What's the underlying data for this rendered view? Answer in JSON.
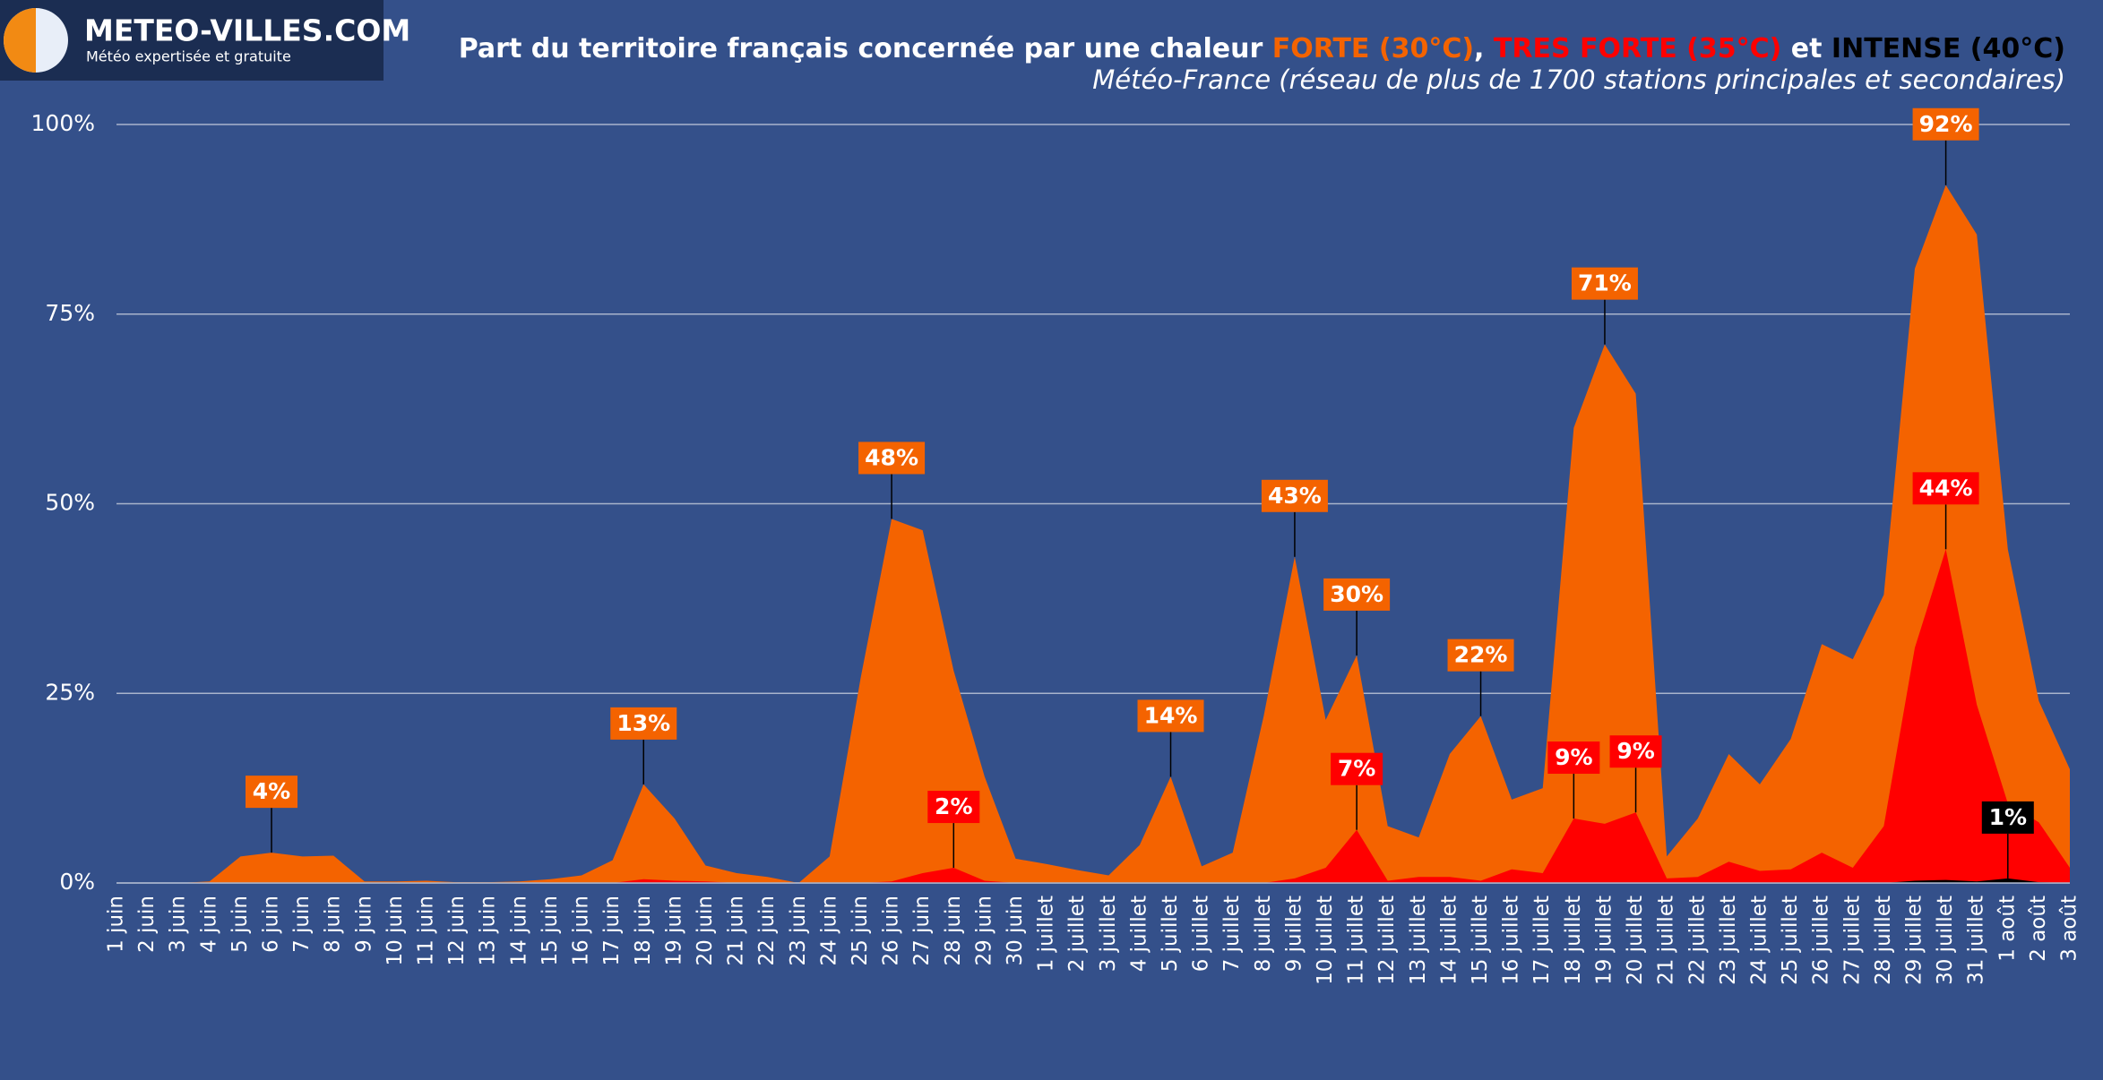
{
  "logo": {
    "title": "METEO-VILLES.COM",
    "tagline": "Météo expertisée et gratuite"
  },
  "chart_data": {
    "type": "area",
    "title": [
      "Part du territoire français concernée par une chaleur ",
      "FORTE (30°C)",
      ",  ",
      "TRES FORTE (35°C)",
      " et ",
      "INTENSE (40°C)"
    ],
    "title_colors": [
      "#ffffff",
      "#f46300",
      "#ffffff",
      "#ff0000",
      "#ffffff",
      "#000000"
    ],
    "subtitle": "Météo-France (réseau de plus de 1700 stations principales et secondaires)",
    "categories": [
      "1 juin",
      "2 juin",
      "3 juin",
      "4 juin",
      "5 juin",
      "6 juin",
      "7 juin",
      "8 juin",
      "9 juin",
      "10 juin",
      "11 juin",
      "12 juin",
      "13 juin",
      "14 juin",
      "15 juin",
      "16 juin",
      "17 juin",
      "18 juin",
      "19 juin",
      "20 juin",
      "21 juin",
      "22 juin",
      "23 juin",
      "24 juin",
      "25 juin",
      "26 juin",
      "27 juin",
      "28 juin",
      "29 juin",
      "30 juin",
      "1 juillet",
      "2 juillet",
      "3 juillet",
      "4 juillet",
      "5 juillet",
      "6 juillet",
      "7 juillet",
      "8 juillet",
      "9 juillet",
      "10 juillet",
      "11 juillet",
      "12 juillet",
      "13 juillet",
      "14 juillet",
      "15 juillet",
      "16 juillet",
      "17 juillet",
      "18 juillet",
      "19 juillet",
      "20 juillet",
      "21 juillet",
      "22 juillet",
      "23 juillet",
      "24 juillet",
      "25 juillet",
      "26 juillet",
      "27 juillet",
      "28 juillet",
      "29 juillet",
      "30 juillet",
      "31 juillet",
      "1 août",
      "2 août",
      "3 août"
    ],
    "series": [
      {
        "name": "FORTE (30°C)",
        "color": "#f46300",
        "values": [
          0,
          0,
          0,
          0.2,
          3.5,
          4,
          3.5,
          3.6,
          0.2,
          0.2,
          0.3,
          0.1,
          0.1,
          0.2,
          0.5,
          1,
          3,
          13,
          8.5,
          2.3,
          1.3,
          0.8,
          0,
          3.5,
          27,
          48,
          46.5,
          28,
          14,
          3.2,
          2.5,
          1.7,
          1,
          5,
          14,
          2.2,
          4,
          22,
          43,
          21.5,
          30,
          7.5,
          6,
          17,
          22,
          11,
          12.5,
          60,
          71,
          64.5,
          3.5,
          8.5,
          17,
          13,
          19,
          31.5,
          29.5,
          38,
          81,
          92,
          85.5,
          44,
          24,
          15
        ],
        "value_labels": [
          null,
          null,
          null,
          null,
          null,
          "4%",
          null,
          null,
          null,
          null,
          null,
          null,
          null,
          null,
          null,
          null,
          null,
          "13%",
          null,
          null,
          null,
          null,
          null,
          null,
          null,
          "48%",
          null,
          null,
          null,
          null,
          null,
          null,
          null,
          null,
          "14%",
          null,
          null,
          null,
          "43%",
          null,
          "30%",
          null,
          null,
          null,
          "22%",
          null,
          null,
          null,
          "71%",
          null,
          null,
          null,
          null,
          null,
          null,
          null,
          null,
          null,
          null,
          "92%",
          null,
          null,
          null,
          null
        ]
      },
      {
        "name": "TRES FORTE (35°C)",
        "color": "#ff0000",
        "values": [
          0,
          0,
          0,
          0,
          0,
          0,
          0,
          0,
          0,
          0,
          0,
          0,
          0,
          0,
          0,
          0,
          0,
          0.5,
          0.3,
          0.2,
          0,
          0,
          0,
          0,
          0,
          0.2,
          1.3,
          2,
          0.3,
          0,
          0,
          0,
          0,
          0,
          0,
          0,
          0,
          0,
          0.6,
          2,
          7,
          0.3,
          0.8,
          0.8,
          0.3,
          1.8,
          1.3,
          8.5,
          7.8,
          9.3,
          0.6,
          0.8,
          2.8,
          1.6,
          1.8,
          4,
          2,
          7.5,
          31,
          44,
          23.5,
          10.5,
          8,
          2
        ],
        "value_labels": [
          null,
          null,
          null,
          null,
          null,
          null,
          null,
          null,
          null,
          null,
          null,
          null,
          null,
          null,
          null,
          null,
          null,
          null,
          null,
          null,
          null,
          null,
          null,
          null,
          null,
          null,
          null,
          "2%",
          null,
          null,
          null,
          null,
          null,
          null,
          null,
          null,
          null,
          null,
          null,
          null,
          "7%",
          null,
          null,
          null,
          null,
          null,
          null,
          "9%",
          null,
          "9%",
          null,
          null,
          null,
          null,
          null,
          null,
          null,
          null,
          null,
          "44%",
          null,
          null,
          null,
          null
        ]
      },
      {
        "name": "INTENSE (40°C)",
        "color": "#000000",
        "values": [
          0,
          0,
          0,
          0,
          0,
          0,
          0,
          0,
          0,
          0,
          0,
          0,
          0,
          0,
          0,
          0,
          0,
          0,
          0,
          0,
          0,
          0,
          0,
          0,
          0,
          0,
          0,
          0,
          0,
          0,
          0,
          0,
          0,
          0,
          0,
          0,
          0,
          0,
          0,
          0,
          0,
          0,
          0,
          0,
          0,
          0,
          0,
          0,
          0,
          0,
          0,
          0,
          0,
          0,
          0,
          0,
          0,
          0,
          0.3,
          0.4,
          0.2,
          0.6,
          0.1,
          0
        ],
        "value_labels": [
          null,
          null,
          null,
          null,
          null,
          null,
          null,
          null,
          null,
          null,
          null,
          null,
          null,
          null,
          null,
          null,
          null,
          null,
          null,
          null,
          null,
          null,
          null,
          null,
          null,
          null,
          null,
          null,
          null,
          null,
          null,
          null,
          null,
          null,
          null,
          null,
          null,
          null,
          null,
          null,
          null,
          null,
          null,
          null,
          null,
          null,
          null,
          null,
          null,
          null,
          null,
          null,
          null,
          null,
          null,
          null,
          null,
          null,
          null,
          null,
          null,
          "1%",
          null,
          null
        ]
      }
    ],
    "ylim": [
      0,
      100
    ],
    "yticks": [
      {
        "value": 0,
        "label": "0%"
      },
      {
        "value": 25,
        "label": "25%"
      },
      {
        "value": 50,
        "label": "50%"
      },
      {
        "value": 75,
        "label": "75%"
      },
      {
        "value": 100,
        "label": "100%"
      }
    ],
    "grid": true
  }
}
